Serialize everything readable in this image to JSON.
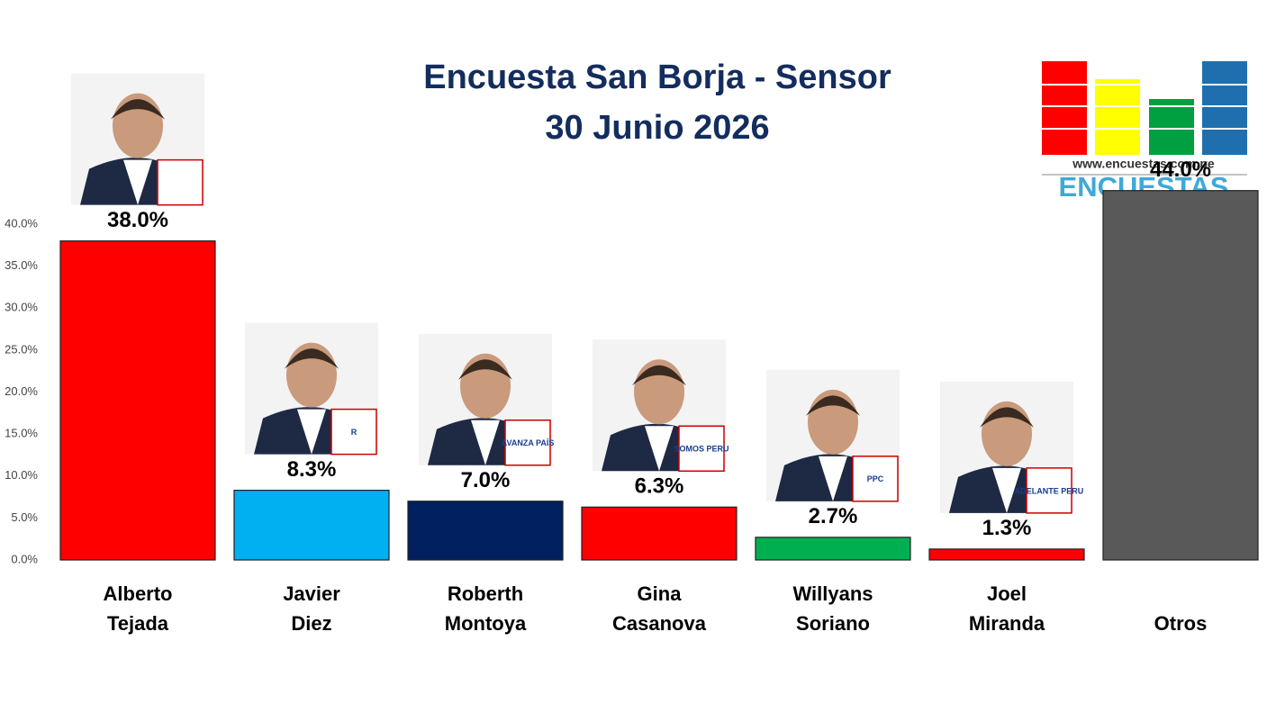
{
  "chart_data": {
    "type": "bar",
    "title": "Encuesta San Borja - Sensor",
    "subtitle": "30 Junio 2026",
    "categories": [
      "Alberto\nTejada",
      "Javier\nDiez",
      "Roberth\nMontoya",
      "Gina\nCasanova",
      "Willyans\nSoriano",
      "Joel\nMiranda",
      "Otros"
    ],
    "values": [
      38.0,
      8.3,
      7.0,
      6.3,
      2.7,
      1.3,
      44.0
    ],
    "value_labels": [
      "38.0%",
      "8.3%",
      "7.0%",
      "6.3%",
      "2.7%",
      "1.3%",
      "44.0%"
    ],
    "colors": [
      "#ff0000",
      "#00b0f0",
      "#002060",
      "#ff0000",
      "#00b050",
      "#ff0000",
      "#595959"
    ],
    "ylim": [
      0,
      40
    ],
    "yticks": [
      {
        "value": 0,
        "label": "0.0%"
      },
      {
        "value": 5,
        "label": "5.0%"
      },
      {
        "value": 10,
        "label": "10.0%"
      },
      {
        "value": 15,
        "label": "15.0%"
      },
      {
        "value": 20,
        "label": "20.0%"
      },
      {
        "value": 25,
        "label": "25.0%"
      },
      {
        "value": 30,
        "label": "30.0%"
      },
      {
        "value": 35,
        "label": "35.0%"
      },
      {
        "value": 40,
        "label": "40.0%"
      }
    ],
    "grid": false
  },
  "badges": [
    "",
    "R",
    "AVANZA PAÍS",
    "SOMOS PERU",
    "PPC",
    "ADELANTE PERU"
  ],
  "logo": {
    "url": "www.encuestas.com.pe",
    "name": "ENCUESTAS"
  }
}
